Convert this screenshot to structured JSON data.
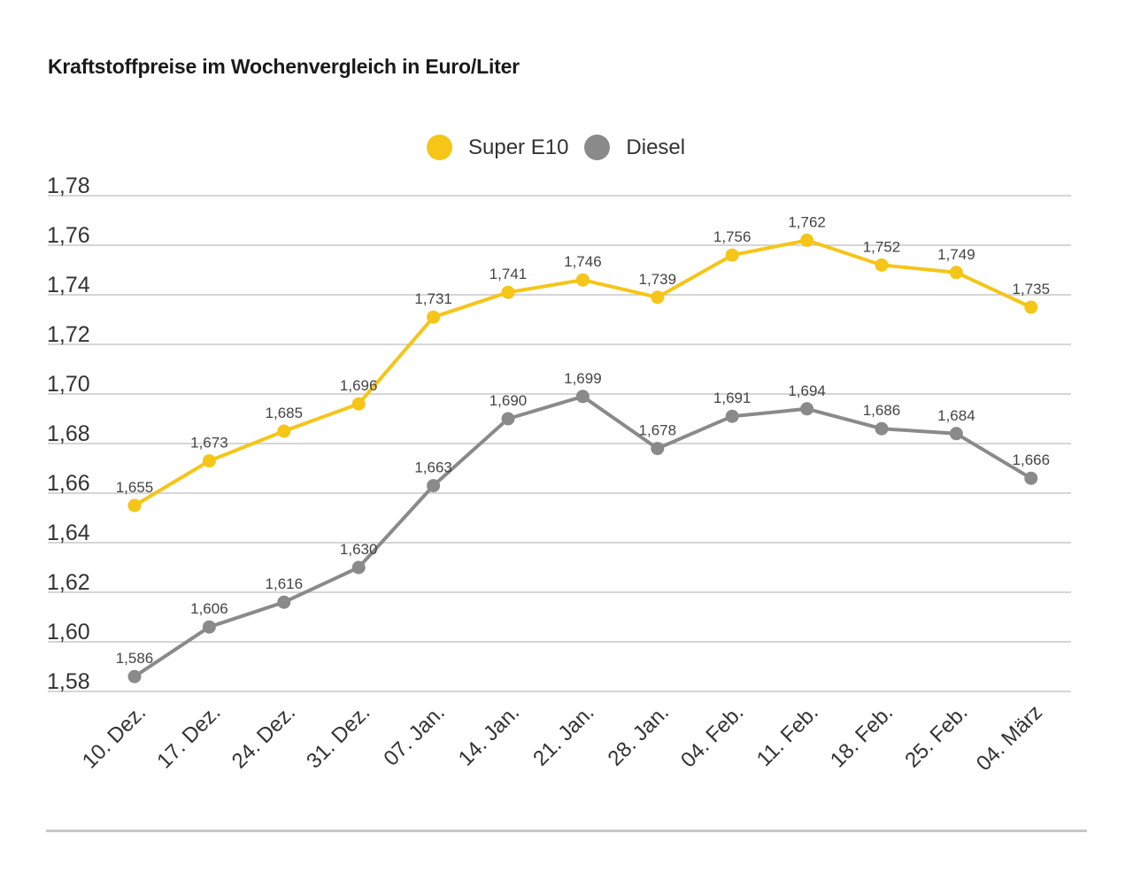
{
  "chart_data": {
    "type": "line",
    "title": "Kraftstoffpreise im Wochenvergleich in Euro/Liter",
    "categories": [
      "10. Dez.",
      "17. Dez.",
      "24. Dez.",
      "31. Dez.",
      "07. Jan.",
      "14. Jan.",
      "21. Jan.",
      "28. Jan.",
      "04. Feb.",
      "11. Feb.",
      "18. Feb.",
      "25. Feb.",
      "04. März"
    ],
    "series": [
      {
        "name": "Super E10",
        "color": "#f5c518",
        "values": [
          1.655,
          1.673,
          1.685,
          1.696,
          1.731,
          1.741,
          1.746,
          1.739,
          1.756,
          1.762,
          1.752,
          1.749,
          1.735
        ],
        "labels": [
          "1,655",
          "1,673",
          "1,685",
          "1,696",
          "1,731",
          "1,741",
          "1,746",
          "1,739",
          "1,756",
          "1,762",
          "1,752",
          "1,749",
          "1,735"
        ]
      },
      {
        "name": "Diesel",
        "color": "#8a8a8a",
        "values": [
          1.586,
          1.606,
          1.616,
          1.63,
          1.663,
          1.69,
          1.699,
          1.678,
          1.691,
          1.694,
          1.686,
          1.684,
          1.666
        ],
        "labels": [
          "1,586",
          "1,606",
          "1,616",
          "1,630",
          "1,663",
          "1,690",
          "1,699",
          "1,678",
          "1,691",
          "1,694",
          "1,686",
          "1,684",
          "1,666"
        ]
      }
    ],
    "ylim": [
      1.58,
      1.78
    ],
    "yticks": [
      1.58,
      1.6,
      1.62,
      1.64,
      1.66,
      1.68,
      1.7,
      1.72,
      1.74,
      1.76,
      1.78
    ],
    "ytick_labels": [
      "1,58",
      "1,60",
      "1,62",
      "1,64",
      "1,66",
      "1,68",
      "1,70",
      "1,72",
      "1,74",
      "1,76",
      "1,78"
    ],
    "xlabel": "",
    "ylabel": "",
    "grid": "horizontal",
    "legend_position": "top-center",
    "gridline_color": "#c8c8c8",
    "label_color": "#444444"
  }
}
